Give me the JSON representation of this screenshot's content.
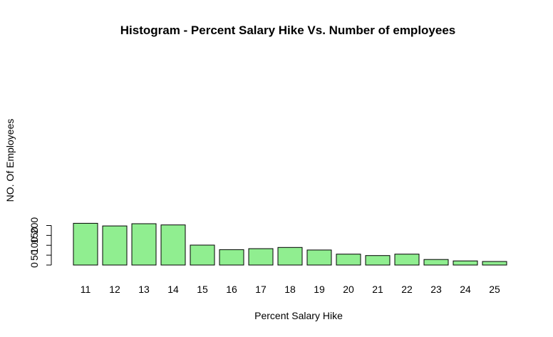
{
  "chart_data": {
    "type": "bar",
    "title": "Histogram - Percent Salary Hike Vs. Number of employees",
    "xlabel": "Percent Salary Hike",
    "ylabel": "NO. Of Employees",
    "categories": [
      "11",
      "12",
      "13",
      "14",
      "15",
      "16",
      "17",
      "18",
      "19",
      "20",
      "21",
      "22",
      "23",
      "24",
      "25"
    ],
    "values": [
      211,
      198,
      209,
      203,
      101,
      78,
      83,
      89,
      76,
      55,
      48,
      55,
      28,
      21,
      18
    ],
    "ylim": [
      0,
      211
    ],
    "yticks": [
      "0",
      "50",
      "100",
      "150",
      "200"
    ],
    "bar_color": "#90ee90",
    "grid": false,
    "legend": "none"
  }
}
